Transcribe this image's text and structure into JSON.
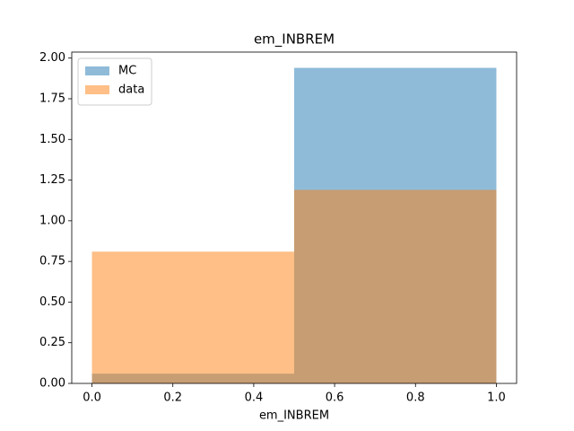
{
  "chart_data": {
    "type": "histogram",
    "title": "em_INBREM",
    "x_label": "em_INBREM",
    "bins": [
      0,
      0.5,
      1.0
    ],
    "series": [
      {
        "name": "MC",
        "color": "#1f77b4",
        "values": [
          0.06,
          1.94
        ]
      },
      {
        "name": "data",
        "color": "#ff7f0e",
        "values": [
          0.81,
          1.19
        ]
      }
    ],
    "alpha": 0.5,
    "xlim": [
      -0.05,
      1.05
    ],
    "xticks": [
      {
        "value": 0,
        "label": "0.0"
      },
      {
        "value": 0.2,
        "label": "0.2"
      },
      {
        "value": 0.4,
        "label": "0.4"
      },
      {
        "value": 0.6,
        "label": "0.6"
      },
      {
        "value": 0.8,
        "label": "0.8"
      },
      {
        "value": 1.0,
        "label": "1.0"
      }
    ],
    "ylim": [
      0,
      2.037
    ],
    "yticks": [
      {
        "value": 0,
        "label": "0.00"
      },
      {
        "value": 0.25,
        "label": "0.25"
      },
      {
        "value": 0.5,
        "label": "0.50"
      },
      {
        "value": 0.75,
        "label": "0.75"
      },
      {
        "value": 1.0,
        "label": "1.00"
      },
      {
        "value": 1.25,
        "label": "1.25"
      },
      {
        "value": 1.5,
        "label": "1.50"
      },
      {
        "value": 1.75,
        "label": "1.75"
      },
      {
        "value": 2.0,
        "label": "2.00"
      }
    ],
    "legend": "upper left",
    "grid": false
  }
}
